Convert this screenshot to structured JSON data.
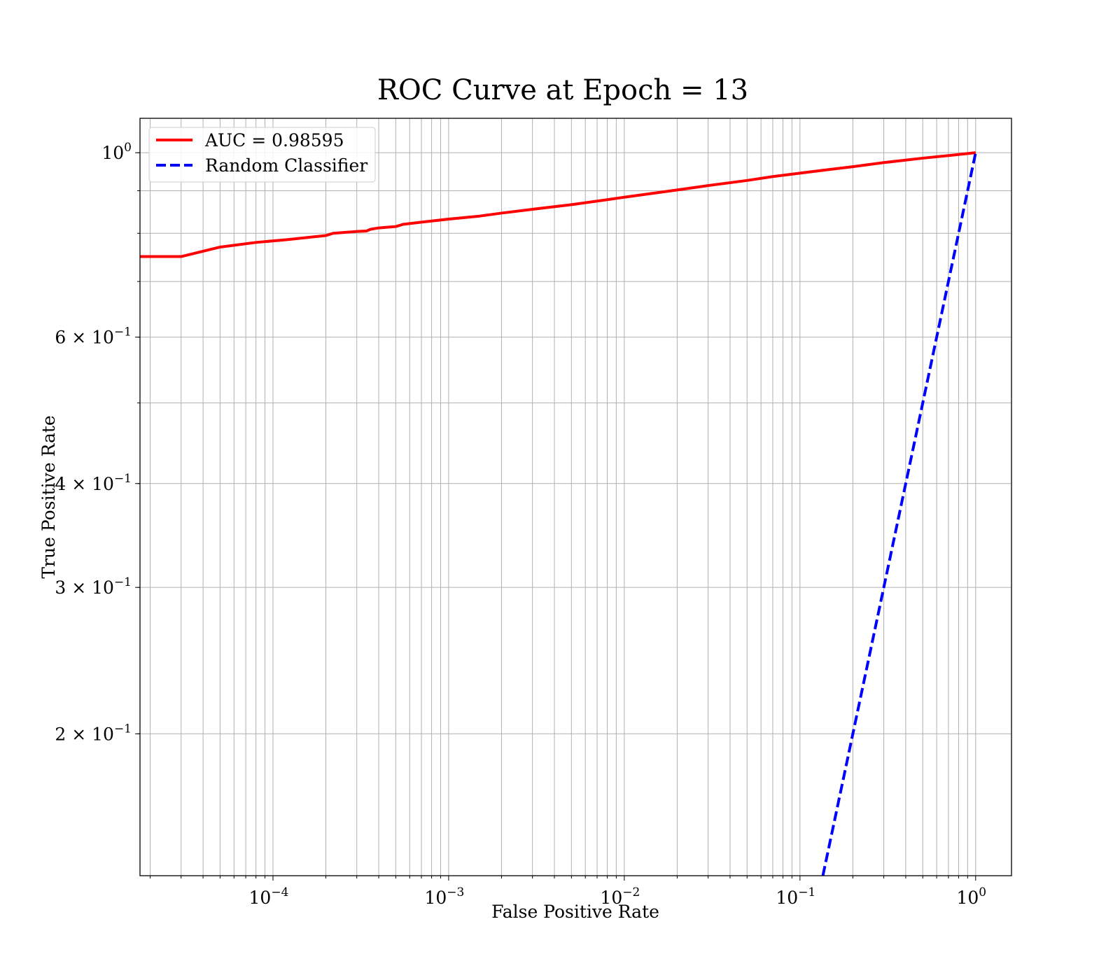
{
  "chart_data": {
    "type": "line",
    "title": "ROC Curve at Epoch = 13",
    "xlabel": "False Positive Rate",
    "ylabel": "True Positive Rate",
    "xscale": "log",
    "yscale": "log",
    "xlim": [
      1.75e-05,
      1.6
    ],
    "ylim": [
      0.135,
      1.1
    ],
    "grid": true,
    "grid_which": "both",
    "legend_position": "upper-left",
    "x_ticks": [
      {
        "value": 0.0001,
        "base": "10",
        "exp": "−4"
      },
      {
        "value": 0.001,
        "base": "10",
        "exp": "−3"
      },
      {
        "value": 0.01,
        "base": "10",
        "exp": "−2"
      },
      {
        "value": 0.1,
        "base": "10",
        "exp": "−1"
      },
      {
        "value": 1,
        "base": "10",
        "exp": "0"
      }
    ],
    "y_ticks": [
      {
        "value": 1,
        "label": "10",
        "exp": "0"
      },
      {
        "value": 0.6,
        "label": "6 × 10",
        "exp": "−1"
      },
      {
        "value": 0.4,
        "label": "4 × 10",
        "exp": "−1"
      },
      {
        "value": 0.3,
        "label": "3 × 10",
        "exp": "−1"
      },
      {
        "value": 0.2,
        "label": "2 × 10",
        "exp": "−1"
      }
    ],
    "series": [
      {
        "name": "AUC = 0.98595",
        "color": "#ff0000",
        "style": "solid",
        "x": [
          1.75e-05,
          3e-05,
          5e-05,
          8e-05,
          0.00012,
          0.0002,
          0.00022,
          0.0003,
          0.00034,
          0.00036,
          0.0004,
          0.0005,
          0.00055,
          0.0007,
          0.001,
          0.0015,
          0.002,
          0.003,
          0.005,
          0.008,
          0.01,
          0.02,
          0.03,
          0.05,
          0.07,
          0.1,
          0.15,
          0.2,
          0.3,
          0.5,
          0.7,
          1.0
        ],
        "y": [
          0.75,
          0.75,
          0.77,
          0.78,
          0.786,
          0.795,
          0.8,
          0.804,
          0.805,
          0.809,
          0.812,
          0.815,
          0.82,
          0.825,
          0.832,
          0.839,
          0.846,
          0.855,
          0.866,
          0.878,
          0.884,
          0.902,
          0.913,
          0.926,
          0.936,
          0.945,
          0.955,
          0.962,
          0.973,
          0.985,
          0.992,
          1.0
        ]
      },
      {
        "name": "Random Classifier",
        "color": "#0000ff",
        "style": "dashed",
        "x": [
          0.135,
          0.2,
          0.3,
          0.4,
          0.5,
          0.6,
          0.7,
          0.8,
          0.9,
          1.0
        ],
        "y": [
          0.135,
          0.2,
          0.3,
          0.4,
          0.5,
          0.6,
          0.7,
          0.8,
          0.9,
          1.0
        ]
      }
    ]
  }
}
